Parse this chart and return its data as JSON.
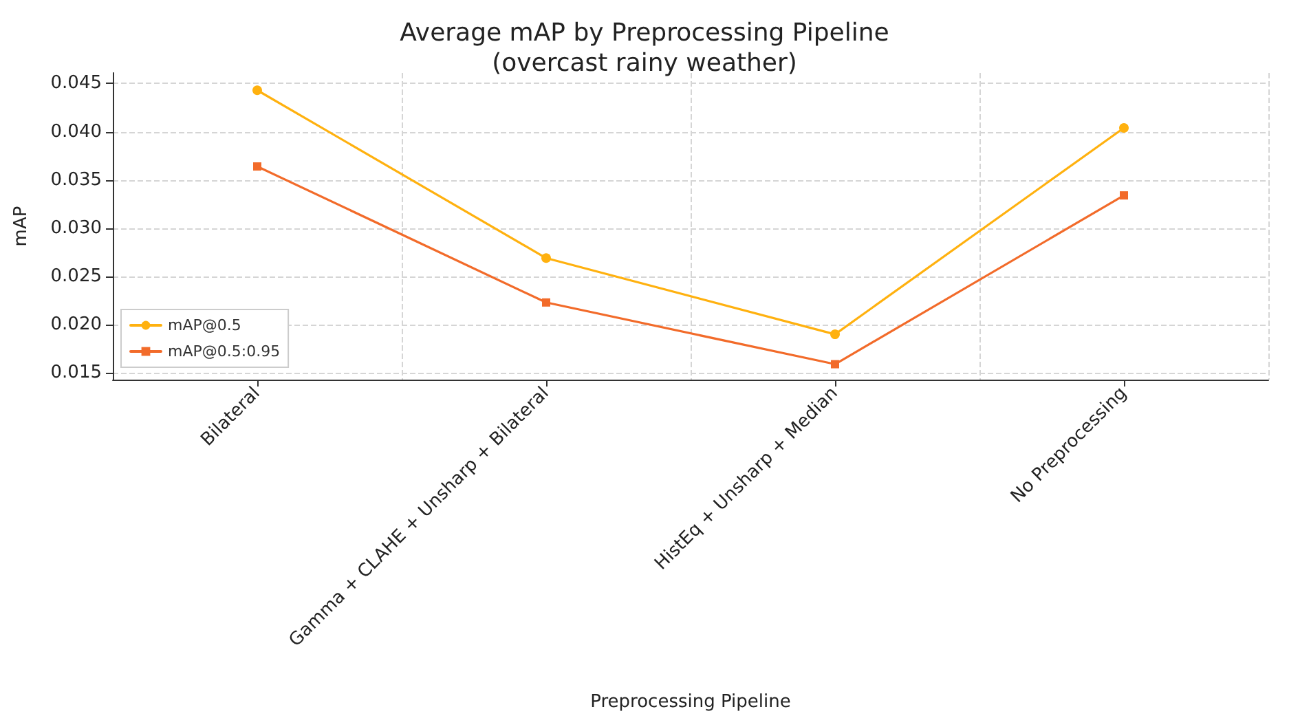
{
  "chart_data": {
    "type": "line",
    "title": "Average mAP by Preprocessing Pipeline\n(overcast rainy weather)",
    "xlabel": "Preprocessing Pipeline",
    "ylabel": "mAP",
    "categories": [
      "Bilateral",
      "Gamma + CLAHE + Unsharp + Bilateral",
      "HistEq + Unsharp + Median",
      "No Preprocessing"
    ],
    "series": [
      {
        "name": "mAP@0.5",
        "color": "#ffb10f",
        "marker": "circle",
        "values": [
          0.0443,
          0.0269,
          0.019,
          0.0404
        ]
      },
      {
        "name": "mAP@0.5:0.95",
        "color": "#f26b2a",
        "marker": "square",
        "values": [
          0.0364,
          0.0223,
          0.0159,
          0.0334
        ]
      }
    ],
    "ylim": [
      0.0143,
      0.0461
    ],
    "yticks": [
      0.015,
      {
        "value": 0.02,
        "label": "0.020"
      },
      0.025,
      {
        "value": 0.03,
        "label": "0.030"
      },
      0.035,
      {
        "value": 0.04,
        "label": "0.040"
      },
      0.045
    ],
    "grid": true,
    "legend": "bottom left",
    "line_style": "solid"
  }
}
